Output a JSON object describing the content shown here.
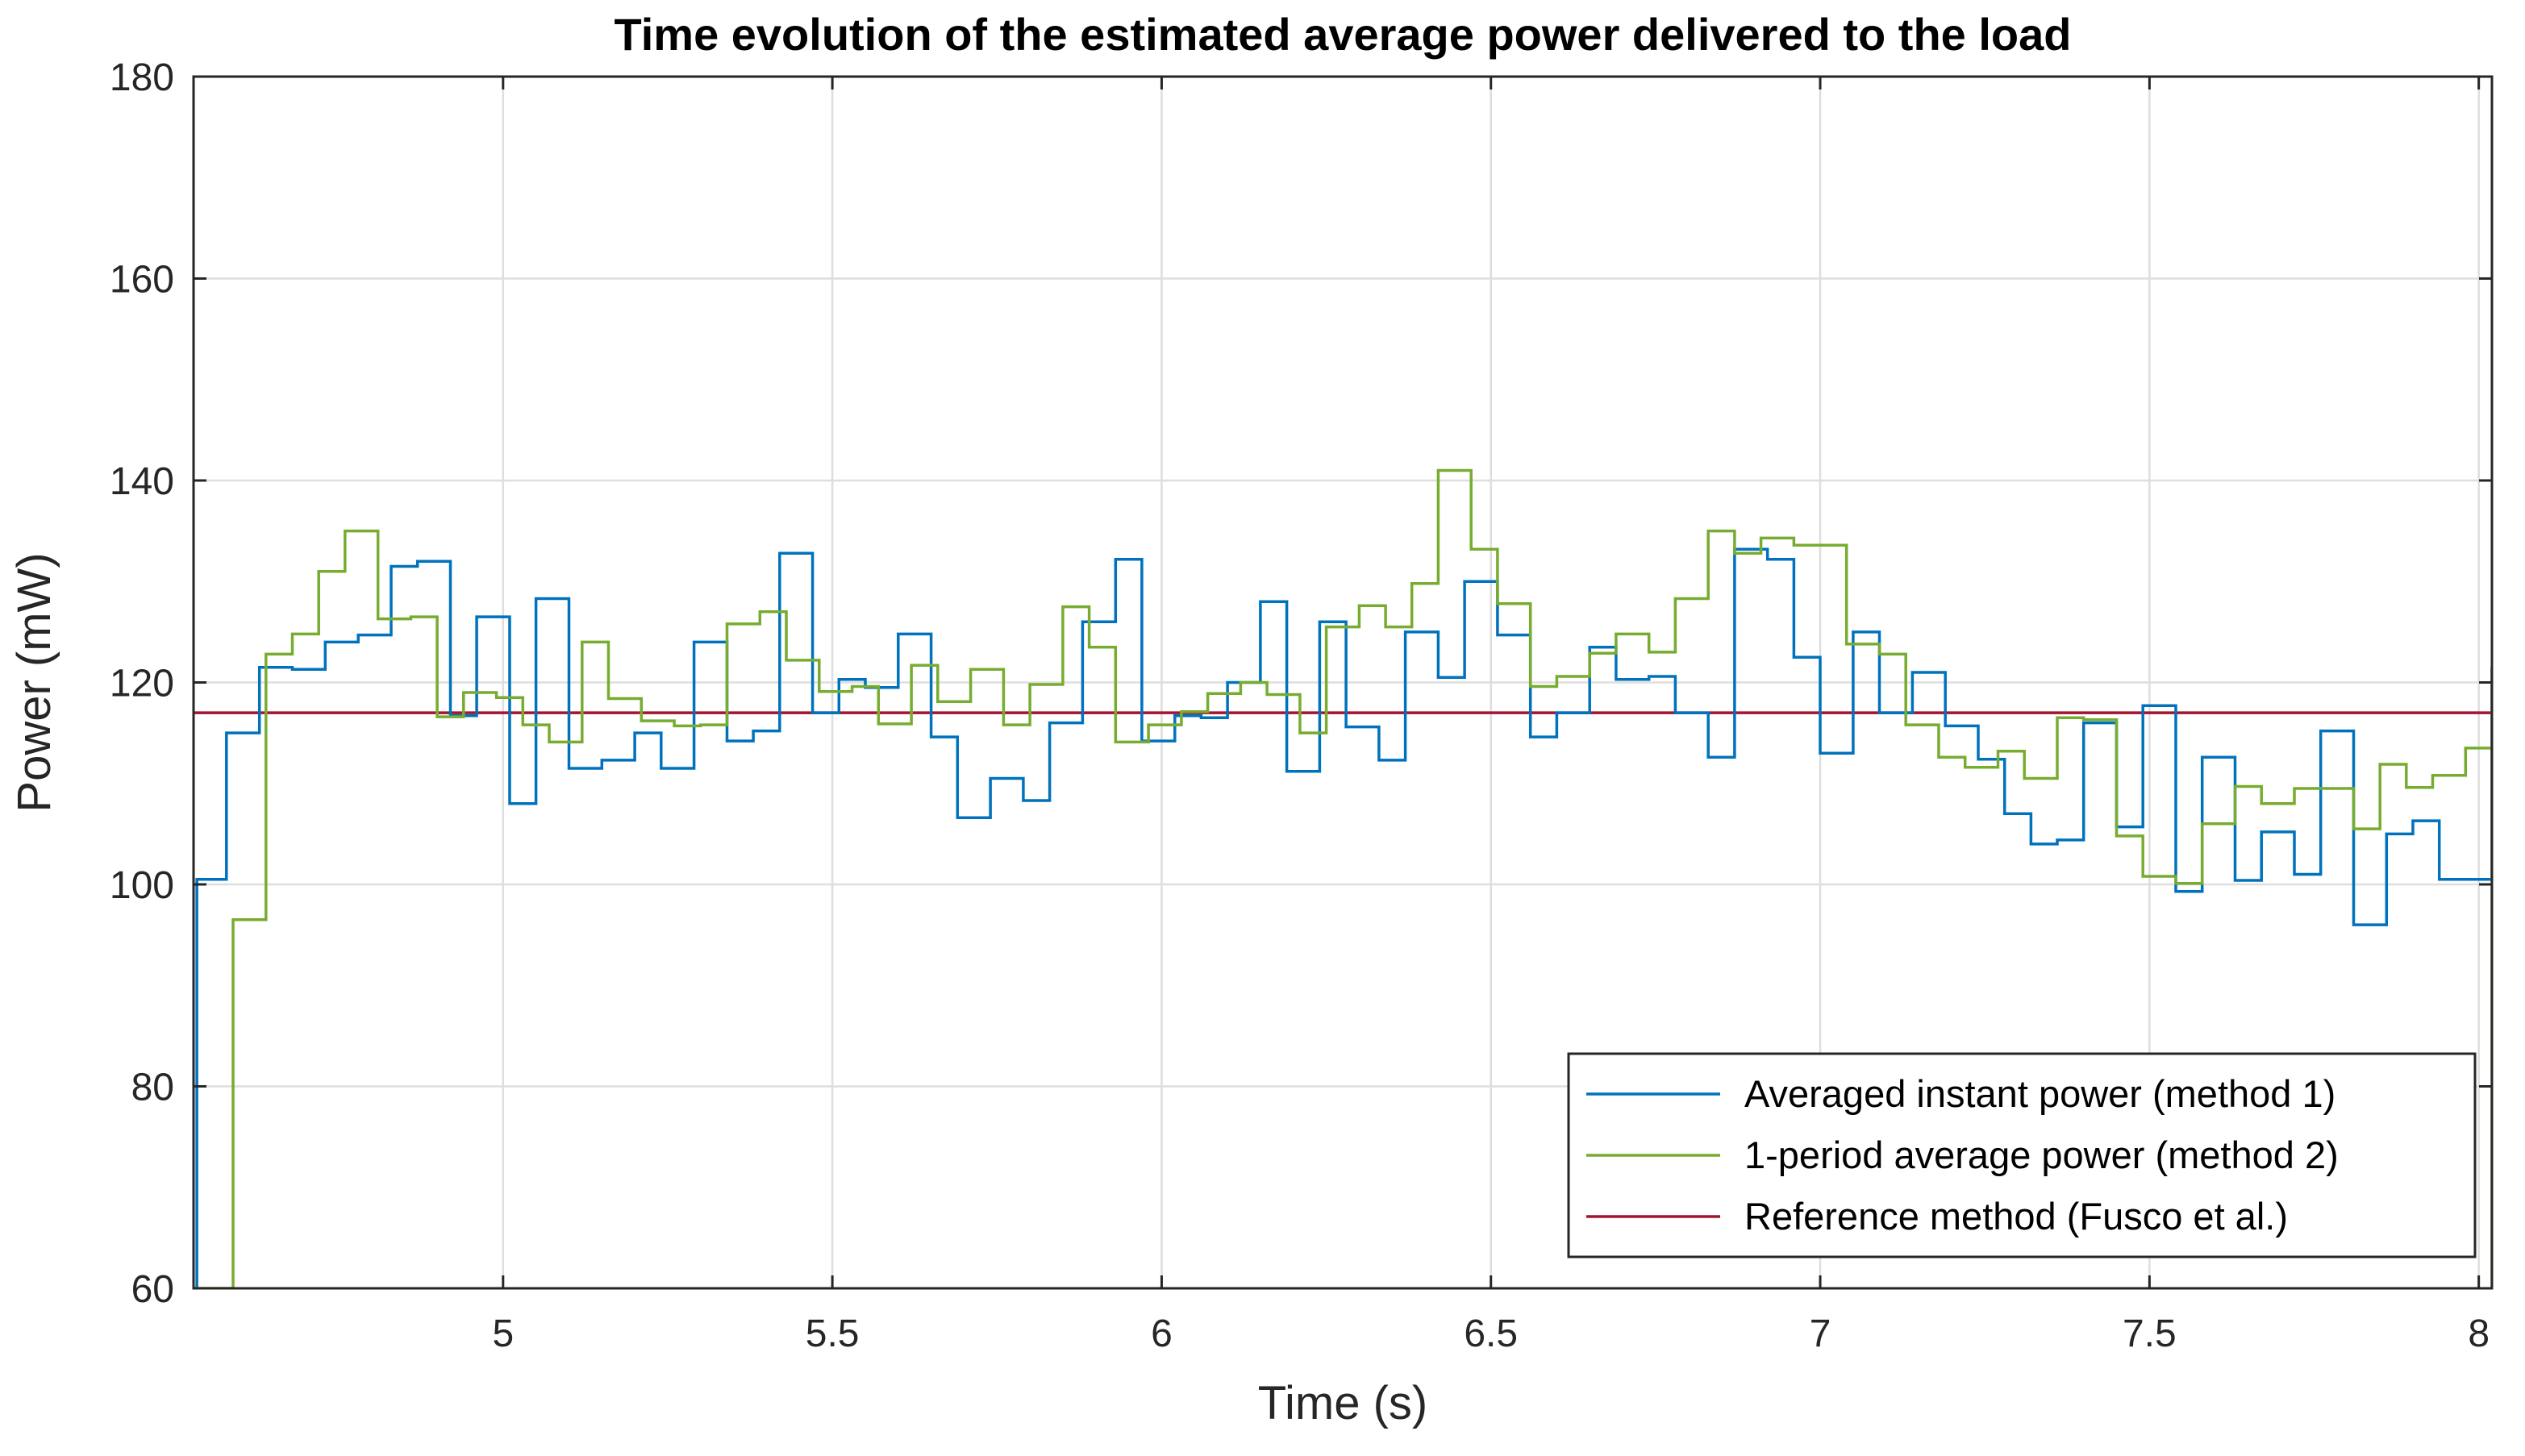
{
  "chart_data": {
    "type": "line",
    "title": "Time evolution of the estimated average power delivered to the load",
    "xlabel": "Time (s)",
    "ylabel": "Power (mW)",
    "xlim": [
      4.53,
      8.02
    ],
    "ylim": [
      60,
      180
    ],
    "xticks": [
      5,
      5.5,
      6,
      6.5,
      7,
      7.5,
      8
    ],
    "xtick_labels": [
      "5",
      "5.5",
      "6",
      "6.5",
      "7",
      "7.5",
      "8"
    ],
    "yticks": [
      60,
      80,
      100,
      120,
      140,
      160,
      180
    ],
    "ytick_labels": [
      "60",
      "80",
      "100",
      "120",
      "140",
      "160",
      "180"
    ],
    "grid": true,
    "legend_position": "bottom-right",
    "colors": {
      "method1": "#0072BD",
      "method2": "#77AC30",
      "reference": "#A2142F",
      "grid": "#dedede",
      "axis": "#262626"
    },
    "series": [
      {
        "name": "Averaged instant power (method 1)",
        "step": true,
        "x": [
          4.53,
          4.535,
          4.58,
          4.63,
          4.68,
          4.73,
          4.78,
          4.83,
          4.87,
          4.92,
          4.96,
          5.01,
          5.05,
          5.1,
          5.15,
          5.2,
          5.24,
          5.29,
          5.34,
          5.38,
          5.42,
          5.47,
          5.51,
          5.55,
          5.6,
          5.65,
          5.69,
          5.74,
          5.79,
          5.83,
          5.88,
          5.93,
          5.97,
          6.02,
          6.06,
          6.1,
          6.15,
          6.19,
          6.24,
          6.28,
          6.33,
          6.37,
          6.42,
          6.46,
          6.51,
          6.56,
          6.6,
          6.65,
          6.69,
          6.74,
          6.78,
          6.83,
          6.87,
          6.92,
          6.96,
          7,
          7.05,
          7.09,
          7.14,
          7.19,
          7.24,
          7.28,
          7.32,
          7.36,
          7.4,
          7.45,
          7.49,
          7.54,
          7.58,
          7.63,
          7.67,
          7.72,
          7.76,
          7.81,
          7.86,
          7.9,
          7.94,
          8.02
        ],
        "y": [
          60,
          100.5,
          115,
          121.5,
          121.3,
          124,
          124.7,
          131.5,
          132,
          116.7,
          126.5,
          108,
          128.3,
          111.5,
          112.3,
          115,
          111.5,
          124,
          114.2,
          115.2,
          132.8,
          117,
          120.3,
          119.5,
          124.8,
          114.6,
          106.6,
          110.5,
          108.3,
          116,
          126,
          132.2,
          114.2,
          116.7,
          116.5,
          120,
          128,
          111.2,
          126,
          115.6,
          112.3,
          125,
          120.5,
          130,
          124.7,
          114.6,
          117,
          123.5,
          120.3,
          120.6,
          117,
          112.6,
          133.2,
          132.2,
          122.5,
          113,
          125,
          117,
          121,
          115.7,
          112.4,
          107,
          104,
          104.4,
          116,
          105.7,
          117.7,
          99.3,
          112.6,
          100.4,
          105.2,
          101,
          115.2,
          96,
          105,
          106.3,
          100.5,
          121.5
        ]
      },
      {
        "name": "1-period average power (method 2)",
        "step": true,
        "x": [
          4.53,
          4.59,
          4.64,
          4.68,
          4.72,
          4.76,
          4.81,
          4.86,
          4.9,
          4.94,
          4.99,
          5.03,
          5.07,
          5.12,
          5.16,
          5.21,
          5.26,
          5.3,
          5.34,
          5.39,
          5.43,
          5.48,
          5.53,
          5.57,
          5.62,
          5.66,
          5.71,
          5.76,
          5.8,
          5.85,
          5.89,
          5.93,
          5.98,
          6.03,
          6.07,
          6.12,
          6.16,
          6.21,
          6.25,
          6.3,
          6.34,
          6.38,
          6.42,
          6.47,
          6.51,
          6.56,
          6.6,
          6.65,
          6.69,
          6.74,
          6.78,
          6.83,
          6.87,
          6.91,
          6.96,
          7,
          7.04,
          7.09,
          7.13,
          7.18,
          7.22,
          7.27,
          7.31,
          7.36,
          7.4,
          7.45,
          7.49,
          7.54,
          7.58,
          7.63,
          7.67,
          7.72,
          7.76,
          7.81,
          7.85,
          7.89,
          7.93,
          7.98,
          8.02
        ],
        "y": [
          60,
          96.5,
          122.8,
          124.8,
          131,
          135,
          126.3,
          126.5,
          116.6,
          119,
          118.5,
          115.8,
          114.1,
          124,
          118.4,
          116.2,
          115.7,
          115.8,
          125.8,
          127,
          122.2,
          119.1,
          119.6,
          115.9,
          121.7,
          118.1,
          121.3,
          115.8,
          119.8,
          127.5,
          123.5,
          114.1,
          115.8,
          117.1,
          118.9,
          120,
          118.8,
          115,
          125.5,
          127.6,
          125.5,
          129.8,
          141,
          133.2,
          127.8,
          119.6,
          120.6,
          122.9,
          124.8,
          123,
          128.3,
          135,
          132.8,
          134.3,
          133.6,
          133.6,
          123.8,
          122.8,
          115.8,
          112.6,
          111.6,
          113.2,
          110.5,
          116.5,
          116.3,
          104.8,
          100.8,
          100.1,
          106,
          109.7,
          108,
          109.5,
          109.5,
          105.5,
          111.9,
          109.6,
          110.8,
          113.5,
          121.5
        ]
      },
      {
        "name": "Reference method (Fusco et al.)",
        "step": false,
        "x": [
          4.53,
          8.02
        ],
        "y": [
          117,
          117
        ]
      }
    ]
  }
}
